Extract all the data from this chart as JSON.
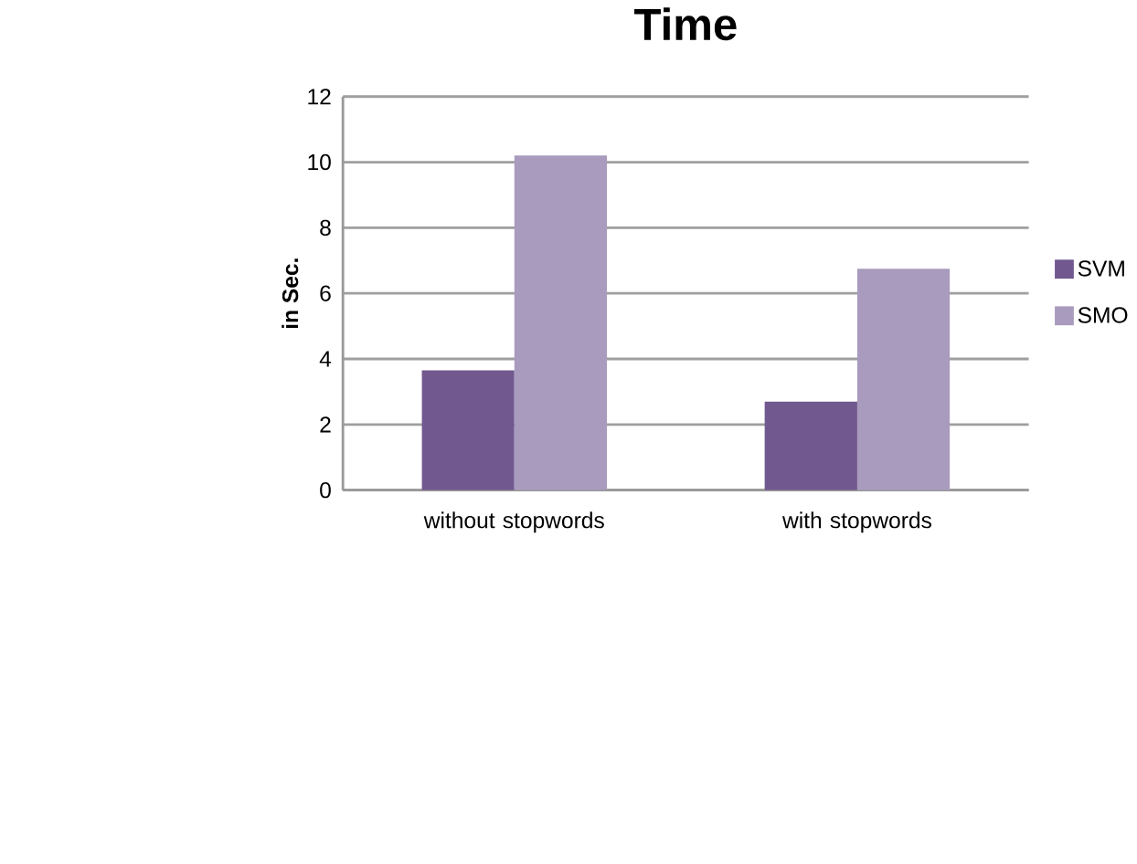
{
  "chart_data": {
    "type": "bar",
    "title": "Time",
    "ylabel": "in Sec.",
    "categories": [
      "without stopwords",
      "with stopwords"
    ],
    "series": [
      {
        "name": "SVM",
        "color": "#71588f",
        "values": [
          3.65,
          2.7
        ]
      },
      {
        "name": "SMO",
        "color": "#a99bbd",
        "values": [
          10.2,
          6.75
        ]
      }
    ],
    "ylim": [
      0,
      12
    ],
    "yticks": [
      0,
      2,
      4,
      6,
      8,
      10,
      12
    ],
    "grid": "y",
    "legend": "right"
  }
}
